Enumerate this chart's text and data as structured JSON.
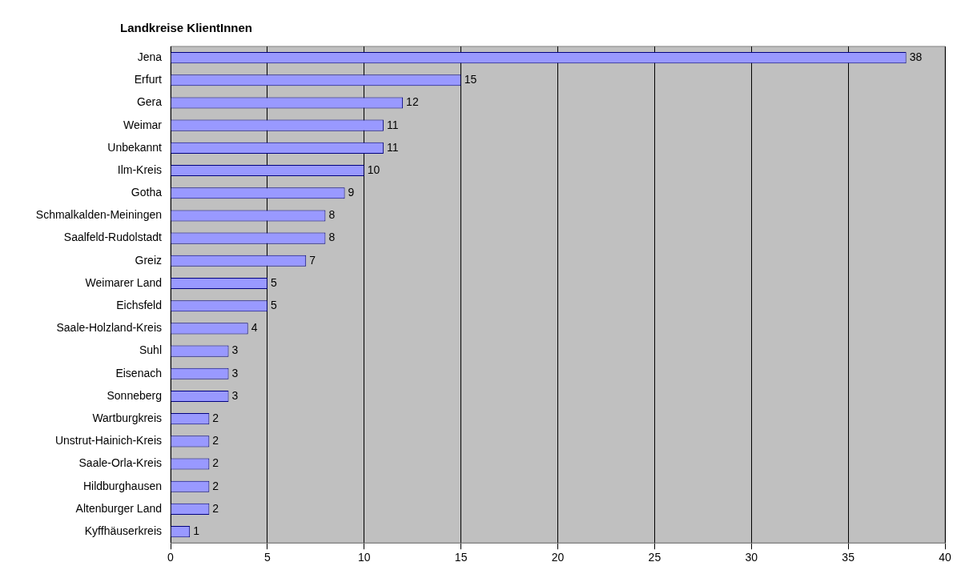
{
  "chart_data": {
    "type": "bar",
    "orientation": "horizontal",
    "title": "Landkreise KlientInnen",
    "categories": [
      "Jena",
      "Erfurt",
      "Gera",
      "Weimar",
      "Unbekannt",
      "Ilm-Kreis",
      "Gotha",
      "Schmalkalden-Meiningen",
      "Saalfeld-Rudolstadt",
      "Greiz",
      "Weimarer Land",
      "Eichsfeld",
      "Saale-Holzland-Kreis",
      "Suhl",
      "Eisenach",
      "Sonneberg",
      "Wartburgkreis",
      "Unstrut-Hainich-Kreis",
      "Saale-Orla-Kreis",
      "Hildburghausen",
      "Altenburger Land",
      "Kyffhäuserkreis"
    ],
    "values": [
      38,
      15,
      12,
      11,
      11,
      10,
      9,
      8,
      8,
      7,
      5,
      5,
      4,
      3,
      3,
      3,
      2,
      2,
      2,
      2,
      2,
      1
    ],
    "color": "#9999ff",
    "xlim": [
      0,
      40
    ],
    "xticks": [
      0,
      5,
      10,
      15,
      20,
      25,
      30,
      35,
      40
    ],
    "grid": "x",
    "data_labels": true
  }
}
